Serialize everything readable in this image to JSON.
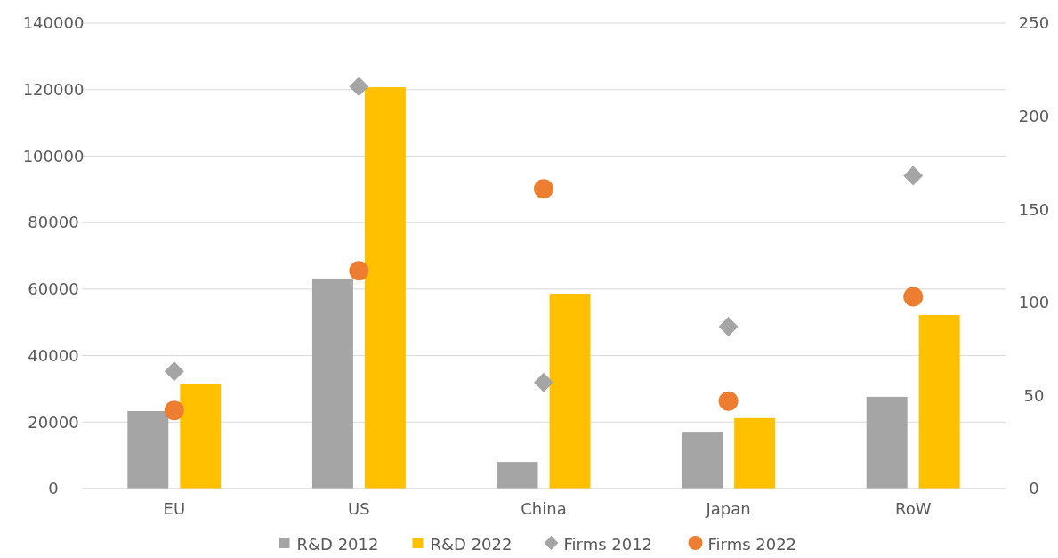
{
  "chart_data": {
    "type": "bar",
    "categories": [
      "EU",
      "US",
      "China",
      "Japan",
      "RoW"
    ],
    "series": [
      {
        "name": "R&D 2012",
        "color": "#a5a5a5",
        "values": [
          23300,
          63200,
          8000,
          17100,
          27600
        ]
      },
      {
        "name": "R&D 2022",
        "color": "#ffc000",
        "values": [
          31600,
          120700,
          58600,
          21200,
          52200
        ]
      },
      {
        "name": "Firms 2012",
        "type": "scatter",
        "axis": "y2",
        "marker": "diamond",
        "color": "#a5a5a5",
        "values": [
          63,
          216,
          57,
          87,
          168
        ]
      },
      {
        "name": "Firms 2022",
        "type": "scatter",
        "axis": "y2",
        "marker": "circle",
        "color": "#ed7d31",
        "values": [
          42,
          117,
          161,
          47,
          103
        ]
      }
    ],
    "ylim": [
      0,
      140000
    ],
    "yticks": [
      0,
      20000,
      40000,
      60000,
      80000,
      100000,
      120000,
      140000
    ],
    "y2lim": [
      0,
      250
    ],
    "y2ticks": [
      0,
      50,
      100,
      150,
      200,
      250
    ],
    "grid": "y",
    "legend": "bottom"
  }
}
